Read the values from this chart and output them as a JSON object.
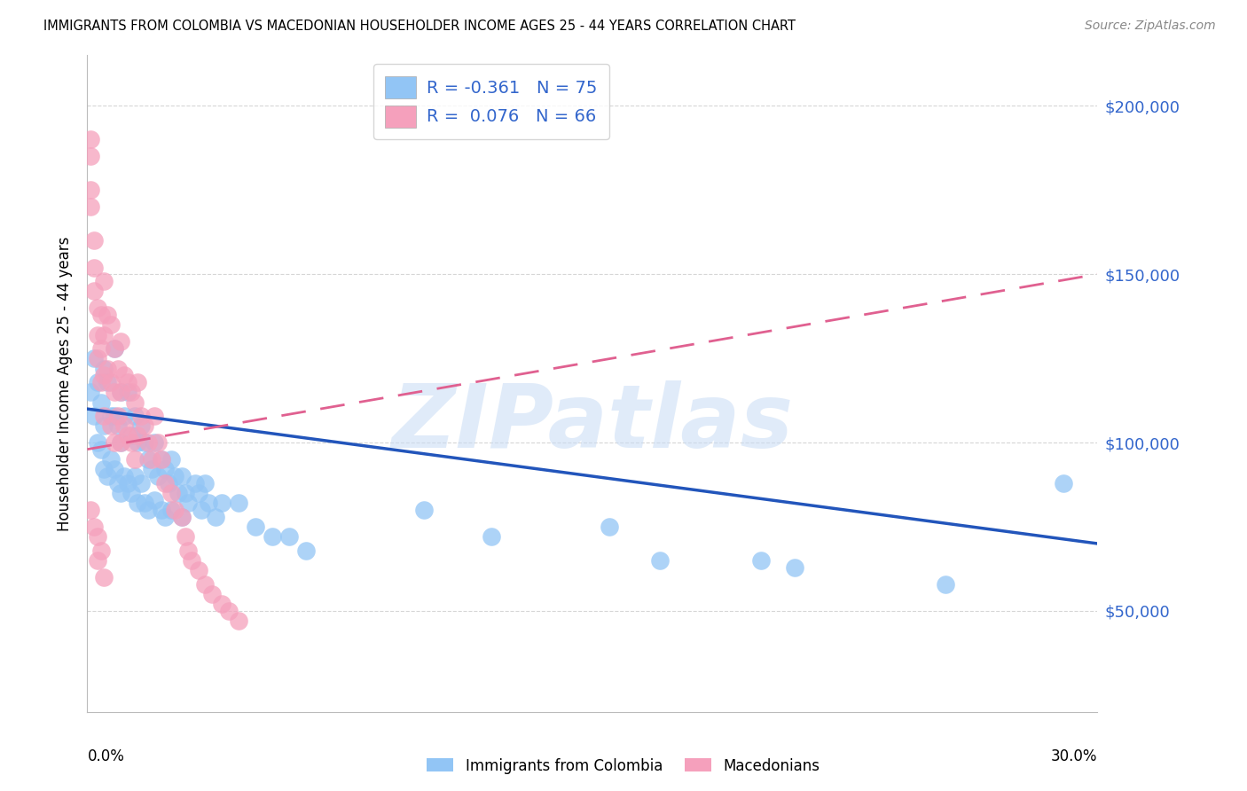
{
  "title": "IMMIGRANTS FROM COLOMBIA VS MACEDONIAN HOUSEHOLDER INCOME AGES 25 - 44 YEARS CORRELATION CHART",
  "source": "Source: ZipAtlas.com",
  "ylabel": "Householder Income Ages 25 - 44 years",
  "xmin": 0.0,
  "xmax": 0.3,
  "ymin": 20000,
  "ymax": 215000,
  "colombia_R": -0.361,
  "colombia_N": 75,
  "macedonian_R": 0.076,
  "macedonian_N": 66,
  "colombia_color": "#92C5F5",
  "macedonian_color": "#F5A0BC",
  "colombia_line_color": "#2255BB",
  "macedonian_line_color": "#E06090",
  "yticks": [
    50000,
    100000,
    150000,
    200000
  ],
  "ytick_labels": [
    "$50,000",
    "$100,000",
    "$150,000",
    "$200,000"
  ],
  "watermark_text": "ZIPatlas",
  "colombia_x": [
    0.001,
    0.002,
    0.002,
    0.003,
    0.003,
    0.004,
    0.004,
    0.005,
    0.005,
    0.005,
    0.006,
    0.006,
    0.007,
    0.007,
    0.008,
    0.008,
    0.008,
    0.009,
    0.009,
    0.01,
    0.01,
    0.01,
    0.011,
    0.011,
    0.012,
    0.012,
    0.013,
    0.013,
    0.014,
    0.014,
    0.015,
    0.015,
    0.016,
    0.016,
    0.017,
    0.017,
    0.018,
    0.018,
    0.019,
    0.02,
    0.02,
    0.021,
    0.022,
    0.022,
    0.023,
    0.023,
    0.024,
    0.025,
    0.025,
    0.026,
    0.027,
    0.028,
    0.028,
    0.029,
    0.03,
    0.032,
    0.033,
    0.034,
    0.035,
    0.036,
    0.038,
    0.04,
    0.045,
    0.05,
    0.055,
    0.06,
    0.065,
    0.1,
    0.12,
    0.155,
    0.17,
    0.2,
    0.21,
    0.255,
    0.29
  ],
  "colombia_y": [
    115000,
    125000,
    108000,
    118000,
    100000,
    112000,
    98000,
    122000,
    105000,
    92000,
    118000,
    90000,
    108000,
    95000,
    128000,
    108000,
    92000,
    105000,
    88000,
    115000,
    100000,
    85000,
    108000,
    90000,
    115000,
    88000,
    102000,
    85000,
    108000,
    90000,
    100000,
    82000,
    105000,
    88000,
    100000,
    82000,
    95000,
    80000,
    92000,
    100000,
    83000,
    90000,
    95000,
    80000,
    92000,
    78000,
    88000,
    95000,
    80000,
    90000,
    85000,
    90000,
    78000,
    85000,
    82000,
    88000,
    85000,
    80000,
    88000,
    82000,
    78000,
    82000,
    82000,
    75000,
    72000,
    72000,
    68000,
    80000,
    72000,
    75000,
    65000,
    65000,
    63000,
    58000,
    88000
  ],
  "macedonian_x": [
    0.001,
    0.001,
    0.001,
    0.001,
    0.002,
    0.002,
    0.002,
    0.003,
    0.003,
    0.003,
    0.004,
    0.004,
    0.004,
    0.005,
    0.005,
    0.005,
    0.005,
    0.006,
    0.006,
    0.007,
    0.007,
    0.007,
    0.008,
    0.008,
    0.008,
    0.009,
    0.009,
    0.01,
    0.01,
    0.01,
    0.011,
    0.011,
    0.012,
    0.012,
    0.013,
    0.013,
    0.014,
    0.014,
    0.015,
    0.015,
    0.016,
    0.017,
    0.018,
    0.019,
    0.02,
    0.021,
    0.022,
    0.023,
    0.025,
    0.026,
    0.028,
    0.029,
    0.03,
    0.031,
    0.033,
    0.035,
    0.037,
    0.04,
    0.042,
    0.045,
    0.001,
    0.002,
    0.003,
    0.003,
    0.004,
    0.005
  ],
  "macedonian_y": [
    190000,
    185000,
    175000,
    170000,
    160000,
    152000,
    145000,
    140000,
    132000,
    125000,
    138000,
    128000,
    118000,
    148000,
    132000,
    120000,
    108000,
    138000,
    122000,
    135000,
    118000,
    105000,
    128000,
    115000,
    100000,
    122000,
    108000,
    130000,
    115000,
    100000,
    120000,
    105000,
    118000,
    102000,
    115000,
    100000,
    112000,
    95000,
    118000,
    102000,
    108000,
    105000,
    100000,
    95000,
    108000,
    100000,
    95000,
    88000,
    85000,
    80000,
    78000,
    72000,
    68000,
    65000,
    62000,
    58000,
    55000,
    52000,
    50000,
    47000,
    80000,
    75000,
    72000,
    65000,
    68000,
    60000
  ]
}
